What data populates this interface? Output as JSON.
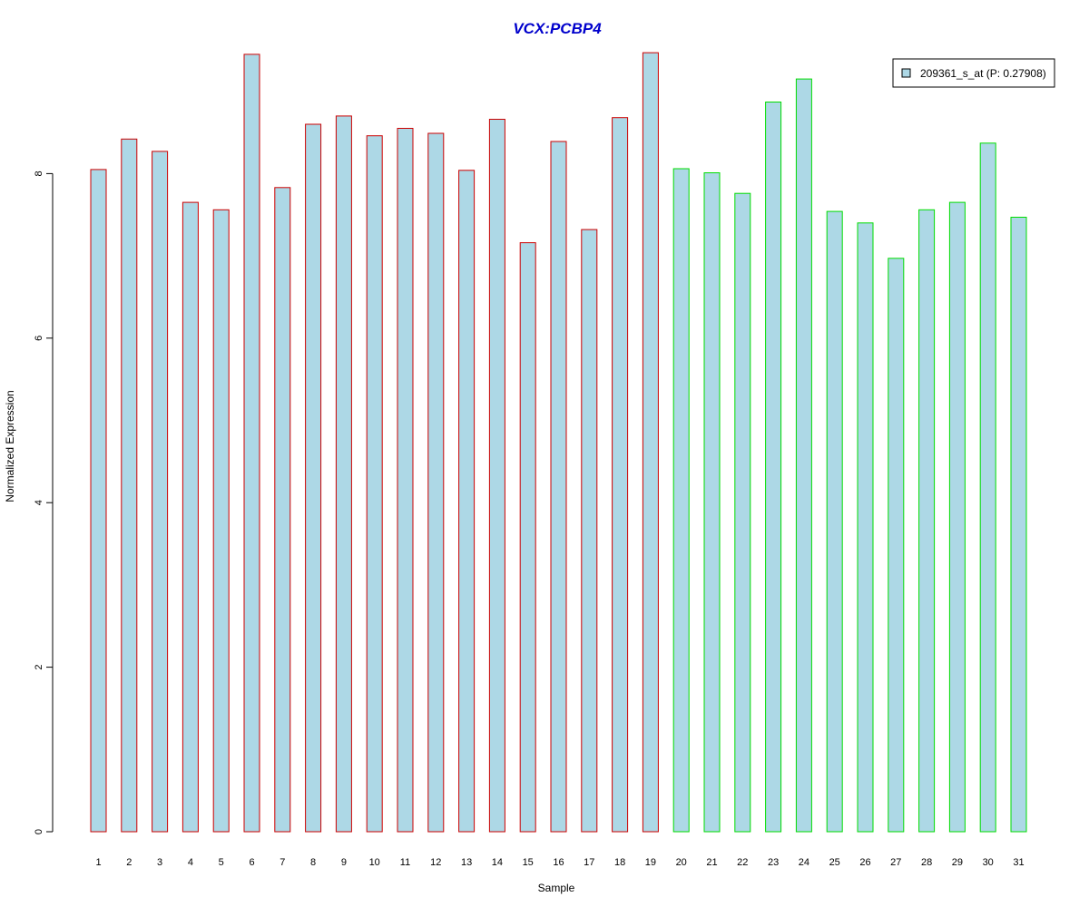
{
  "chart_data": {
    "type": "bar",
    "title": "VCX:PCBP4",
    "xlabel": "Sample",
    "ylabel": "Normalized Expression",
    "ylim": [
      0,
      9.5
    ],
    "yticks": [
      0,
      2,
      4,
      6,
      8
    ],
    "categories": [
      "1",
      "2",
      "3",
      "4",
      "5",
      "6",
      "7",
      "8",
      "9",
      "10",
      "11",
      "12",
      "13",
      "14",
      "15",
      "16",
      "17",
      "18",
      "19",
      "20",
      "21",
      "22",
      "23",
      "24",
      "25",
      "26",
      "27",
      "28",
      "29",
      "30",
      "31"
    ],
    "series": [
      {
        "name": "209361_s_at (P: 0.27908)",
        "values": [
          8.05,
          8.42,
          8.27,
          7.65,
          7.56,
          9.45,
          7.83,
          8.6,
          8.7,
          8.46,
          8.55,
          8.49,
          8.04,
          8.66,
          7.16,
          8.39,
          7.32,
          8.68,
          9.47,
          8.06,
          8.01,
          7.76,
          8.87,
          9.15,
          7.54,
          7.4,
          6.97,
          7.56,
          7.65,
          8.37,
          7.47
        ]
      }
    ],
    "legend_position": "top-right",
    "grid": false,
    "colors": {
      "title": "#0000cc",
      "bar_fill": "#add8e6",
      "group1_border": "#cc0000",
      "group2_border": "#00dd00",
      "axis": "#000000"
    },
    "group1_count": 19
  }
}
